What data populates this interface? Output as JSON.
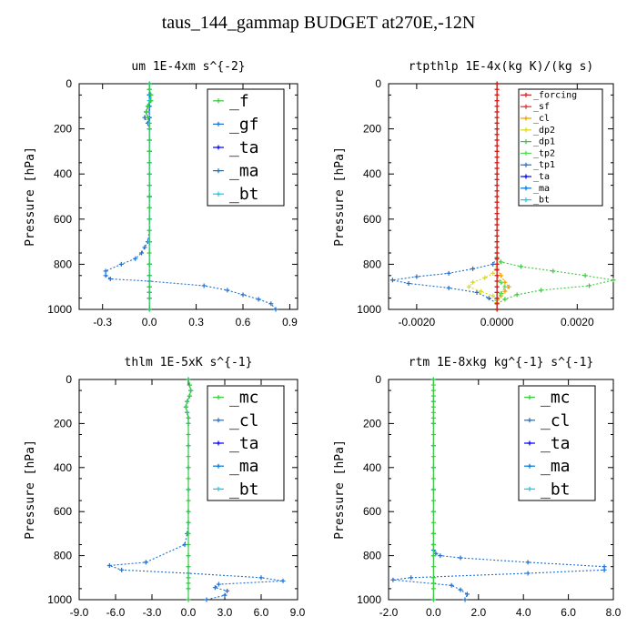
{
  "title": "taus_144_gammap  BUDGET at270E,-12N",
  "chart_data": [
    {
      "type": "line",
      "title": "um  1E-4xm s^{-2}",
      "ylabel": "Pressure [hPa]",
      "xlim": [
        -0.45,
        0.95
      ],
      "ylim": [
        1000,
        0
      ],
      "xticks": [
        "-0.3",
        "0.0",
        "0.3",
        "0.6",
        "0.9"
      ],
      "xtick_values": [
        -0.3,
        0.0,
        0.3,
        0.6,
        0.9
      ],
      "yticks": [
        "0",
        "200",
        "400",
        "600",
        "800",
        "1000"
      ],
      "legend": [
        "_f",
        "_gf",
        "_ta",
        "_ma",
        "_bt"
      ],
      "legend_style": "large",
      "series": [
        {
          "name": "_ta",
          "color": "#0000ff",
          "dash": "2,2",
          "x": [
            0,
            0,
            0,
            0,
            0,
            0,
            0,
            0,
            0,
            0,
            0,
            0,
            0,
            0,
            0,
            0
          ],
          "y": [
            0,
            50,
            100,
            150,
            200,
            300,
            400,
            500,
            600,
            700,
            800,
            850,
            900,
            925,
            950,
            1000
          ]
        },
        {
          "name": "_ma",
          "color": "#0078d7",
          "dash": "4,2",
          "x": [
            0,
            0,
            0,
            0,
            0,
            0,
            0,
            0,
            0,
            0,
            0,
            0,
            0,
            0,
            0,
            0
          ],
          "y": [
            0,
            50,
            100,
            150,
            200,
            300,
            400,
            500,
            600,
            700,
            800,
            850,
            900,
            925,
            950,
            1000
          ]
        },
        {
          "name": "_gf",
          "color": "#1f6fd0",
          "dash": "2,2",
          "x": [
            0.0,
            0.0,
            0.01,
            0.01,
            -0.01,
            -0.02,
            -0.03,
            -0.01,
            0.0,
            0.0,
            0.0,
            0.0,
            0.0,
            0.0,
            0.0,
            0.0,
            0.0,
            0.0,
            -0.01,
            -0.03,
            -0.05,
            -0.09,
            -0.18,
            -0.28,
            -0.28,
            -0.25,
            0.0,
            0.35,
            0.5,
            0.6,
            0.7,
            0.78,
            0.81
          ],
          "y": [
            0,
            25,
            50,
            75,
            100,
            125,
            150,
            175,
            200,
            250,
            300,
            350,
            400,
            450,
            500,
            550,
            600,
            650,
            700,
            725,
            750,
            775,
            800,
            830,
            850,
            865,
            875,
            895,
            915,
            935,
            955,
            975,
            1000
          ]
        },
        {
          "name": "_bt",
          "color": "#00d2f0",
          "dash": "",
          "x": [
            0.0,
            0.0,
            0.01,
            0.0,
            -0.01,
            -0.02,
            -0.01,
            0.0,
            0.0,
            0.0,
            0.0,
            0.0,
            0.0,
            0.0,
            0.0,
            0.0,
            0.0,
            0.0,
            0.0,
            0.0,
            0.0,
            0.0
          ],
          "y": [
            0,
            25,
            50,
            75,
            100,
            125,
            150,
            175,
            200,
            250,
            300,
            350,
            400,
            450,
            500,
            550,
            600,
            700,
            800,
            850,
            900,
            1000
          ]
        },
        {
          "name": "_f",
          "color": "#3ec83e",
          "dash": "",
          "x": [
            0.0,
            0.0,
            0.01,
            0.01,
            -0.01,
            -0.02,
            -0.01,
            0.0,
            0.0,
            0.0,
            0.0,
            0.0,
            0.0,
            0.0,
            0.0,
            0.0,
            0.0,
            0.0,
            0.0,
            0.0,
            0.0,
            0.0,
            0.0,
            0.0,
            0.0,
            0.0
          ],
          "y": [
            0,
            25,
            50,
            75,
            100,
            125,
            150,
            175,
            200,
            250,
            300,
            350,
            400,
            450,
            500,
            550,
            600,
            650,
            700,
            750,
            800,
            850,
            900,
            925,
            950,
            1000
          ]
        }
      ]
    },
    {
      "type": "line",
      "title": "rtpthlp  1E-4x(kg K)/(kg s)",
      "ylabel": "Pressure [hPa]",
      "xlim": [
        -0.0027,
        0.0029
      ],
      "ylim": [
        1000,
        0
      ],
      "xticks": [
        "-0.0020",
        "0.0000",
        "0.0020"
      ],
      "xtick_values": [
        -0.002,
        0.0,
        0.002
      ],
      "yticks": [
        "0",
        "200",
        "400",
        "600",
        "800",
        "1000"
      ],
      "legend": [
        "_forcing",
        "_sf",
        "_cl",
        "_dp2",
        "_dp1",
        "_tp2",
        "_tp1",
        "_ta",
        "_ma",
        "_bt"
      ],
      "legend_style": "small",
      "series": [
        {
          "name": "_tp1",
          "color": "#1f6fd0",
          "dash": "2,2",
          "x": [
            0,
            0,
            0,
            0,
            0,
            -0.0001,
            -0.0006,
            -0.0012,
            -0.002,
            -0.0026,
            -0.0022,
            -0.0012,
            -0.0005,
            -0.0002,
            0,
            0
          ],
          "y": [
            0,
            200,
            400,
            600,
            770,
            800,
            820,
            840,
            855,
            870,
            885,
            905,
            925,
            950,
            975,
            1000
          ]
        },
        {
          "name": "_dp1",
          "color": "#3ec83e",
          "dash": "2,2",
          "x": [
            0,
            0,
            0,
            0,
            0,
            0.0001,
            0.0006,
            0.0014,
            0.0022,
            0.0029,
            0.0023,
            0.0011,
            0.0005,
            0.0002,
            0,
            0
          ],
          "y": [
            0,
            200,
            400,
            600,
            770,
            790,
            810,
            830,
            850,
            870,
            895,
            915,
            935,
            955,
            975,
            1000
          ]
        },
        {
          "name": "_dp2",
          "color": "#d8d820",
          "dash": "2,2",
          "x": [
            0,
            0,
            0,
            0,
            -0.0001,
            -0.0003,
            -0.0006,
            -0.0007,
            -0.0004,
            -0.0001,
            0,
            0
          ],
          "y": [
            0,
            400,
            700,
            800,
            840,
            860,
            880,
            900,
            920,
            940,
            970,
            1000
          ]
        },
        {
          "name": "_cl",
          "color": "#f0a000",
          "dash": "2,2",
          "x": [
            0,
            0,
            0,
            0,
            0.0001,
            0.0002,
            0.0003,
            0.0002,
            0.0001,
            0,
            0
          ],
          "y": [
            0,
            400,
            700,
            820,
            850,
            880,
            900,
            920,
            940,
            970,
            1000
          ]
        },
        {
          "name": "_tp2",
          "color": "#58d858",
          "dash": "2,2",
          "x": [
            0,
            0,
            0,
            0,
            0.0001,
            0.0002,
            0.0001,
            0,
            0
          ],
          "y": [
            0,
            400,
            700,
            850,
            880,
            900,
            930,
            960,
            1000
          ]
        },
        {
          "name": "_bt",
          "color": "#00d2f0",
          "dash": "",
          "x": [
            0,
            0,
            0,
            0,
            0,
            0,
            0,
            0
          ],
          "y": [
            0,
            200,
            400,
            600,
            800,
            900,
            950,
            1000
          ]
        },
        {
          "name": "_sf",
          "color": "#ff2020",
          "dash": "",
          "x": [
            0,
            0,
            0,
            0,
            0,
            0,
            0,
            0,
            0,
            0,
            0,
            0,
            0,
            0,
            0,
            0,
            0,
            0,
            0,
            0,
            0,
            0,
            0,
            0,
            0,
            0,
            0,
            0,
            0,
            0,
            0,
            0,
            0,
            0,
            0,
            0,
            0,
            0,
            0,
            0,
            0
          ],
          "y": [
            0,
            25,
            50,
            75,
            100,
            125,
            150,
            175,
            200,
            225,
            250,
            275,
            300,
            325,
            350,
            375,
            400,
            425,
            450,
            475,
            500,
            525,
            550,
            575,
            600,
            625,
            650,
            675,
            700,
            725,
            750,
            775,
            800,
            825,
            850,
            875,
            900,
            925,
            950,
            975,
            1000
          ]
        },
        {
          "name": "_forcing",
          "color": "#cc2222",
          "dash": "",
          "x": [
            0,
            0,
            0,
            0,
            0,
            0,
            0,
            0,
            0,
            0,
            0,
            0,
            0,
            0,
            0,
            0,
            0,
            0,
            0,
            0,
            0,
            0,
            0,
            0,
            0,
            0,
            0,
            0,
            0,
            0,
            0,
            0,
            0,
            0,
            0,
            0,
            0,
            0,
            0,
            0,
            0
          ],
          "y": [
            0,
            25,
            50,
            75,
            100,
            125,
            150,
            175,
            200,
            225,
            250,
            275,
            300,
            325,
            350,
            375,
            400,
            425,
            450,
            475,
            500,
            525,
            550,
            575,
            600,
            625,
            650,
            675,
            700,
            725,
            750,
            775,
            800,
            825,
            850,
            875,
            900,
            925,
            950,
            975,
            1000
          ]
        }
      ]
    },
    {
      "type": "line",
      "title": "thlm  1E-5xK s^{-1}",
      "ylabel": "Pressure [hPa]",
      "xlim": [
        -9.0,
        9.0
      ],
      "ylim": [
        1000,
        0
      ],
      "xticks": [
        "-9.0",
        "-6.0",
        "-3.0",
        "0.0",
        "3.0",
        "6.0",
        "9.0"
      ],
      "xtick_values": [
        -9,
        -6,
        -3,
        0,
        3,
        6,
        9
      ],
      "yticks": [
        "0",
        "200",
        "400",
        "600",
        "800",
        "1000"
      ],
      "legend": [
        "_mc",
        "_cl",
        "_ta",
        "_ma",
        "_bt"
      ],
      "legend_style": "large",
      "series": [
        {
          "name": "_cl",
          "color": "#1f6fd0",
          "dash": "2,2",
          "x": [
            0,
            0.1,
            0.2,
            0.1,
            -0.1,
            -0.2,
            -0.1,
            0,
            0,
            0,
            0,
            0,
            0,
            0,
            -0.1,
            -0.3,
            -3.5,
            -6.5,
            -5.5,
            0,
            6,
            7.8,
            2.5,
            2.2,
            3.2,
            3,
            1.5
          ],
          "y": [
            0,
            25,
            50,
            75,
            100,
            125,
            150,
            175,
            200,
            300,
            400,
            500,
            600,
            650,
            700,
            750,
            830,
            845,
            865,
            880,
            900,
            915,
            930,
            945,
            960,
            980,
            1000
          ]
        },
        {
          "name": "_bt",
          "color": "#00d2f0",
          "dash": "",
          "x": [
            0,
            0.1,
            0.2,
            0.1,
            -0.1,
            -0.2,
            -0.1,
            0,
            0,
            0,
            0,
            0,
            0,
            0,
            0,
            0,
            0,
            0,
            0
          ],
          "y": [
            0,
            25,
            50,
            75,
            100,
            125,
            150,
            175,
            200,
            300,
            400,
            500,
            600,
            700,
            800,
            850,
            900,
            950,
            1000
          ]
        },
        {
          "name": "_mc",
          "color": "#3ec83e",
          "dash": "",
          "x": [
            0,
            0.1,
            0.2,
            0.1,
            -0.1,
            -0.2,
            -0.1,
            0,
            0,
            0,
            0,
            0,
            0,
            0,
            0,
            0,
            0,
            0,
            0,
            0,
            0,
            0,
            0,
            0,
            0,
            0
          ],
          "y": [
            0,
            25,
            50,
            75,
            100,
            125,
            150,
            175,
            200,
            250,
            300,
            350,
            400,
            450,
            500,
            550,
            600,
            650,
            700,
            750,
            800,
            850,
            900,
            925,
            950,
            1000
          ]
        }
      ]
    },
    {
      "type": "line",
      "title": "rtm  1E-8xkg kg^{-1} s^{-1}",
      "ylabel": "Pressure [hPa]",
      "xlim": [
        -2.0,
        8.0
      ],
      "ylim": [
        1000,
        0
      ],
      "xticks": [
        "-2.0",
        "0.0",
        "2.0",
        "4.0",
        "6.0",
        "8.0"
      ],
      "xtick_values": [
        -2,
        0,
        2,
        4,
        6,
        8
      ],
      "yticks": [
        "0",
        "200",
        "400",
        "600",
        "800",
        "1000"
      ],
      "legend": [
        "_mc",
        "_cl",
        "_ta",
        "_ma",
        "_bt"
      ],
      "legend_style": "large",
      "series": [
        {
          "name": "_cl",
          "color": "#1f6fd0",
          "dash": "2,2",
          "x": [
            0,
            0,
            0,
            0,
            0,
            0,
            0,
            0,
            0,
            0,
            0.1,
            0.3,
            1.2,
            4.2,
            7.6,
            7.6,
            4.2,
            -1.0,
            -1.8,
            0.8,
            1.2,
            1.5,
            1.4
          ],
          "y": [
            0,
            100,
            200,
            300,
            400,
            500,
            600,
            700,
            750,
            775,
            790,
            800,
            810,
            830,
            850,
            865,
            880,
            900,
            910,
            935,
            955,
            975,
            1000
          ]
        },
        {
          "name": "_bt",
          "color": "#00d2f0",
          "dash": "",
          "x": [
            0,
            0,
            0,
            0,
            0,
            0,
            0,
            0,
            0,
            0,
            0
          ],
          "y": [
            0,
            100,
            200,
            300,
            400,
            500,
            600,
            700,
            800,
            900,
            1000
          ]
        },
        {
          "name": "_mc",
          "color": "#3ec83e",
          "dash": "",
          "x": [
            0,
            0,
            0,
            0,
            0,
            0,
            0,
            0,
            0,
            0,
            0,
            0,
            0,
            0,
            0,
            0,
            0,
            0,
            0,
            0,
            0,
            0,
            0,
            0,
            0,
            0
          ],
          "y": [
            0,
            25,
            50,
            75,
            100,
            125,
            150,
            175,
            200,
            250,
            300,
            350,
            400,
            450,
            500,
            550,
            600,
            650,
            700,
            750,
            800,
            850,
            900,
            925,
            950,
            1000
          ]
        }
      ]
    }
  ]
}
